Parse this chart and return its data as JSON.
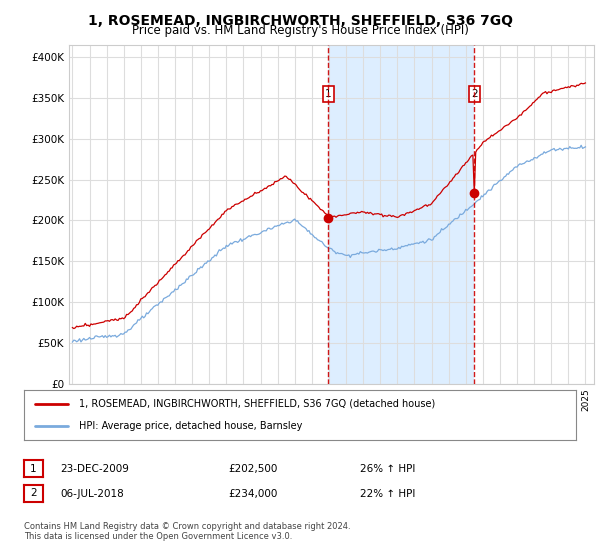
{
  "title": "1, ROSEMEAD, INGBIRCHWORTH, SHEFFIELD, S36 7GQ",
  "subtitle": "Price paid vs. HM Land Registry's House Price Index (HPI)",
  "title_fontsize": 10,
  "subtitle_fontsize": 8.5,
  "ylabel_ticks": [
    "£0",
    "£50K",
    "£100K",
    "£150K",
    "£200K",
    "£250K",
    "£300K",
    "£350K",
    "£400K"
  ],
  "ytick_values": [
    0,
    50000,
    100000,
    150000,
    200000,
    250000,
    300000,
    350000,
    400000
  ],
  "ylim": [
    0,
    415000
  ],
  "xlim_start": 1994.8,
  "xlim_end": 2025.5,
  "red_line_color": "#cc0000",
  "blue_line_color": "#7aaadd",
  "shade_color": "#ddeeff",
  "plot_bg_color": "#ffffff",
  "fig_bg_color": "#ffffff",
  "grid_color": "#dddddd",
  "sale1_x": 2009.97,
  "sale1_y": 202500,
  "sale2_x": 2018.51,
  "sale2_y": 234000,
  "vline1_x": 2009.97,
  "vline2_x": 2018.51,
  "vline_color": "#cc0000",
  "legend_entry1": "1, ROSEMEAD, INGBIRCHWORTH, SHEFFIELD, S36 7GQ (detached house)",
  "legend_entry2": "HPI: Average price, detached house, Barnsley",
  "table_row1": [
    "1",
    "23-DEC-2009",
    "£202,500",
    "26% ↑ HPI"
  ],
  "table_row2": [
    "2",
    "06-JUL-2018",
    "£234,000",
    "22% ↑ HPI"
  ],
  "footer": "Contains HM Land Registry data © Crown copyright and database right 2024.\nThis data is licensed under the Open Government Licence v3.0."
}
